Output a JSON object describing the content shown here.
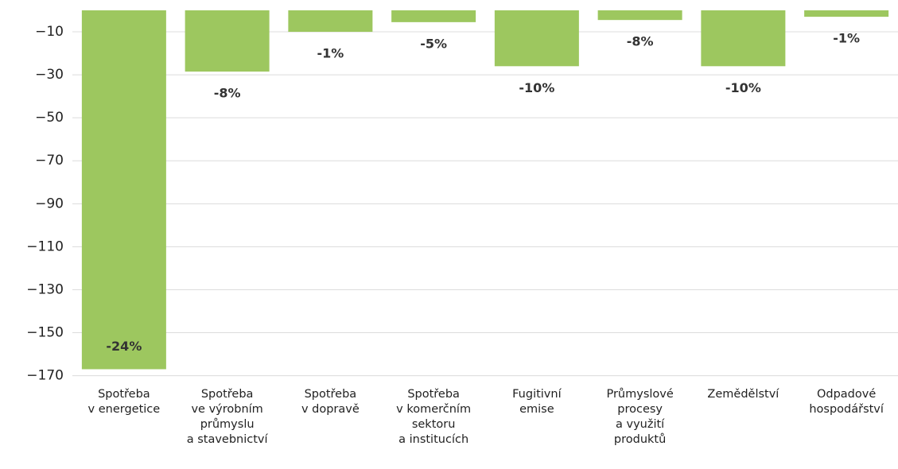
{
  "chart_data": {
    "type": "bar",
    "categories": [
      "Spotřeba\nv energetice",
      "Spotřeba\nve výrobním\nprůmyslu\na stavebnictví",
      "Spotřeba\nv dopravě",
      "Spotřeba\nv komerčním\nsektoru\na institucích",
      "Fugitivní\nemise",
      "Průmyslové\nprocesy\na využití\nproduktů",
      "Zemědělství",
      "Odpadové\nhospodářství"
    ],
    "values": [
      -167,
      -28.5,
      -10,
      -5.5,
      -26,
      -4.5,
      -26,
      -3
    ],
    "annotations": [
      "-24%",
      "-8%",
      "-1%",
      "-5%",
      "-10%",
      "-8%",
      "-10%",
      "-1%"
    ],
    "color": "#9dc75f",
    "ylim": [
      -172,
      0
    ],
    "yticks": [
      {
        "value": -10,
        "label": "−10"
      },
      {
        "value": -30,
        "label": "−30"
      },
      {
        "value": -50,
        "label": "−50"
      },
      {
        "value": -70,
        "label": "−70"
      },
      {
        "value": -90,
        "label": "−90"
      },
      {
        "value": -110,
        "label": "−110"
      },
      {
        "value": -130,
        "label": "−130"
      },
      {
        "value": -150,
        "label": "−150"
      },
      {
        "value": -170,
        "label": "−170"
      }
    ],
    "grid": true
  }
}
